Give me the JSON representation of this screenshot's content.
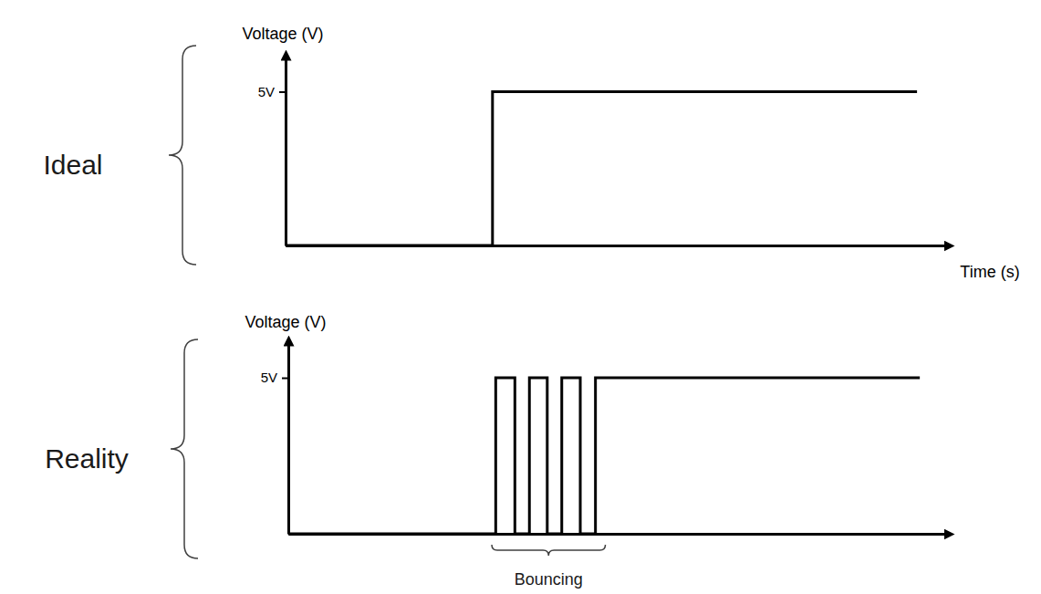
{
  "chart_data": [
    {
      "type": "line",
      "title": "Ideal",
      "x_label": "Time (s)",
      "y_label": "Voltage (V)",
      "x": [
        0,
        31.2,
        31.2,
        95.2
      ],
      "values": [
        0,
        0,
        5,
        5
      ],
      "color": "#000000",
      "xlim": [
        0,
        100
      ],
      "ylim": [
        0,
        6.2
      ],
      "xticks": [],
      "yticks": [
        {
          "value": 5,
          "label": "5V"
        }
      ],
      "tick_labels": "y"
    },
    {
      "type": "line",
      "title": "Reality",
      "y_label": "Voltage (V)",
      "x": [
        0,
        31.4,
        31.4,
        34.3,
        34.3,
        36.5,
        36.5,
        39.2,
        39.2,
        41.4,
        41.4,
        44.2,
        44.2,
        46.5,
        46.5,
        95.6
      ],
      "values": [
        0,
        0,
        5,
        5,
        0,
        0,
        5,
        5,
        0,
        0,
        5,
        5,
        0,
        0,
        5,
        5
      ],
      "color": "#000000",
      "xlim": [
        0,
        100
      ],
      "ylim": [
        0,
        6.2
      ],
      "xticks": [],
      "yticks": [
        {
          "value": 5,
          "label": "5V"
        }
      ],
      "tick_labels": "y",
      "annotations": [
        {
          "text": "Bouncing",
          "x_start": 30.8,
          "x_end": 48.0
        }
      ]
    }
  ]
}
